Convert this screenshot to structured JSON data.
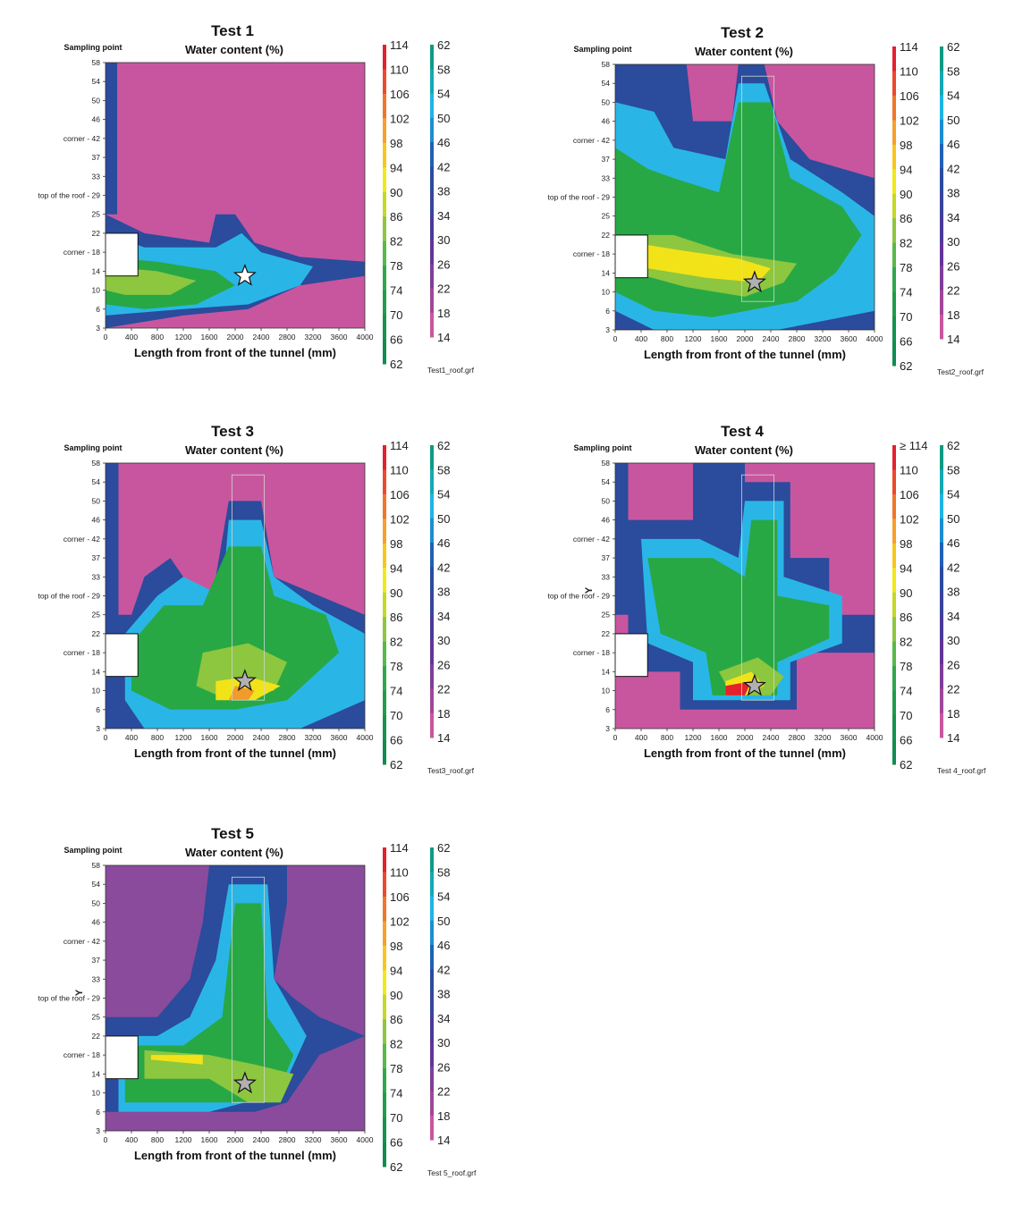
{
  "chart_data": [
    {
      "type": "heatmap",
      "title": "Test 1",
      "subtitle": "Water content (%)",
      "ylabel_header": "Sampling point",
      "xlabel": "Length from front of the tunnel (mm)",
      "x_ticks": [
        "0",
        "400",
        "800",
        "1200",
        "1600",
        "2000",
        "2400",
        "2800",
        "3200",
        "3600",
        "4000"
      ],
      "y_ticks": [
        "58",
        "54",
        "50",
        "46",
        "corner - 42",
        "37",
        "33",
        "top of the roof - 29",
        "25",
        "22",
        "corner - 18",
        "14",
        "10",
        "6",
        "3"
      ],
      "colorbar_left": [
        "114",
        "110",
        "106",
        "102",
        "98",
        "94",
        "90",
        "86",
        "82",
        "78",
        "74",
        "70",
        "66",
        "62"
      ],
      "colorbar_right": [
        "62",
        "58",
        "54",
        "50",
        "46",
        "42",
        "38",
        "34",
        "30",
        "26",
        "22",
        "18",
        "14"
      ],
      "file_label": "Test1_roof.grf",
      "background_level": "pink (14-18)",
      "marker": {
        "x_mm": 2150,
        "y": 13,
        "symbol": "star",
        "fill": "#ffffff"
      },
      "has_rect": false,
      "extra_y_marker": ""
    },
    {
      "type": "heatmap",
      "title": "Test 2",
      "subtitle": "Water content (%)",
      "ylabel_header": "Sampling point",
      "xlabel": "Length from front of the tunnel (mm)",
      "x_ticks": [
        "0",
        "400",
        "800",
        "1200",
        "1600",
        "2000",
        "2400",
        "2800",
        "3200",
        "3600",
        "4000"
      ],
      "y_ticks": [
        "58",
        "54",
        "50",
        "46",
        "corner - 42",
        "37",
        "33",
        "top of the roof - 29",
        "25",
        "22",
        "corner - 18",
        "14",
        "10",
        "6",
        "3"
      ],
      "colorbar_left": [
        "114",
        "110",
        "106",
        "102",
        "98",
        "94",
        "90",
        "86",
        "82",
        "78",
        "74",
        "70",
        "66",
        "62"
      ],
      "colorbar_right": [
        "62",
        "58",
        "54",
        "50",
        "46",
        "42",
        "38",
        "34",
        "30",
        "26",
        "22",
        "18",
        "14"
      ],
      "file_label": "Test2_roof.grf",
      "background_level": "pink (14-18)",
      "marker": {
        "x_mm": 2150,
        "y": 12,
        "symbol": "star",
        "fill": "#b0b0b0"
      },
      "has_rect": true,
      "extra_y_marker": ""
    },
    {
      "type": "heatmap",
      "title": "Test 3",
      "subtitle": "Water content (%)",
      "ylabel_header": "Sampling point",
      "xlabel": "Length from front of the tunnel (mm)",
      "x_ticks": [
        "0",
        "400",
        "800",
        "1200",
        "1600",
        "2000",
        "2400",
        "2800",
        "3200",
        "3600",
        "4000"
      ],
      "y_ticks": [
        "58",
        "54",
        "50",
        "46",
        "corner - 42",
        "37",
        "33",
        "top of the roof - 29",
        "25",
        "22",
        "corner - 18",
        "14",
        "10",
        "6",
        "3"
      ],
      "colorbar_left": [
        "114",
        "110",
        "106",
        "102",
        "98",
        "94",
        "90",
        "86",
        "82",
        "78",
        "74",
        "70",
        "66",
        "62"
      ],
      "colorbar_right": [
        "62",
        "58",
        "54",
        "50",
        "46",
        "42",
        "38",
        "34",
        "30",
        "26",
        "22",
        "18",
        "14"
      ],
      "file_label": "Test3_roof.grf",
      "background_level": "pink (14-18)",
      "marker": {
        "x_mm": 2150,
        "y": 12,
        "symbol": "star",
        "fill": "#b0b0b0"
      },
      "has_rect": true,
      "extra_y_marker": ""
    },
    {
      "type": "heatmap",
      "title": "Test 4",
      "subtitle": "Water content (%)",
      "ylabel_header": "Sampling point",
      "xlabel": "Length from front of the tunnel (mm)",
      "x_ticks": [
        "0",
        "400",
        "800",
        "1200",
        "1600",
        "2000",
        "2400",
        "2800",
        "3200",
        "3600",
        "4000"
      ],
      "y_ticks": [
        "58",
        "54",
        "50",
        "46",
        "corner - 42",
        "37",
        "33",
        "top of the roof - 29",
        "25",
        "22",
        "corner - 18",
        "14",
        "10",
        "6",
        "3"
      ],
      "colorbar_left": [
        "≥ 114",
        "110",
        "106",
        "102",
        "98",
        "94",
        "90",
        "86",
        "82",
        "78",
        "74",
        "70",
        "66",
        "62"
      ],
      "colorbar_right": [
        "62",
        "58",
        "54",
        "50",
        "46",
        "42",
        "38",
        "34",
        "30",
        "26",
        "22",
        "18",
        "14"
      ],
      "file_label": "Test 4_roof.grf",
      "background_level": "pink (14-18)",
      "marker": {
        "x_mm": 2150,
        "y": 11,
        "symbol": "star",
        "fill": "#b0b0b0"
      },
      "has_rect": true,
      "extra_y_marker": "Y"
    },
    {
      "type": "heatmap",
      "title": "Test 5",
      "subtitle": "Water content (%)",
      "ylabel_header": "Sampling point",
      "xlabel": "Length from front of the tunnel (mm)",
      "x_ticks": [
        "0",
        "400",
        "800",
        "1200",
        "1600",
        "2000",
        "2400",
        "2800",
        "3200",
        "3600",
        "4000"
      ],
      "y_ticks": [
        "58",
        "54",
        "50",
        "46",
        "corner - 42",
        "37",
        "33",
        "top of the roof - 29",
        "25",
        "22",
        "corner - 18",
        "14",
        "10",
        "6",
        "3"
      ],
      "colorbar_left": [
        "114",
        "110",
        "106",
        "102",
        "98",
        "94",
        "90",
        "86",
        "82",
        "78",
        "74",
        "70",
        "66",
        "62"
      ],
      "colorbar_right": [
        "62",
        "58",
        "54",
        "50",
        "46",
        "42",
        "38",
        "34",
        "30",
        "26",
        "22",
        "18",
        "14"
      ],
      "file_label": "Test 5_roof.grf",
      "background_level": "purple (18-22)",
      "marker": {
        "x_mm": 2150,
        "y": 12,
        "symbol": "star",
        "fill": "#b0b0b0"
      },
      "has_rect": true,
      "extra_y_marker": "Y"
    }
  ],
  "colors": {
    "left_scale": [
      "#e4212c",
      "#ec4a2a",
      "#f2752a",
      "#f6a12a",
      "#f8c61c",
      "#f1e917",
      "#c5d824",
      "#8fc63f",
      "#57b947",
      "#2ea84a",
      "#1f9c4c",
      "#14934e",
      "#0e8d4f"
    ],
    "right_scale": [
      "#0f9a83",
      "#14a8b4",
      "#1eb5e2",
      "#1b8ed0",
      "#2060b4",
      "#2b4b9c",
      "#39449a",
      "#4b3b97",
      "#633597",
      "#7f3e98",
      "#a0479a",
      "#c8569f"
    ],
    "pink": "#c8569f",
    "purple": "#8a4b9c",
    "deep_blue": "#2b4b9c",
    "light_blue": "#29b6e6",
    "cyan": "#1ba5c8",
    "green": "#27a845",
    "lime": "#8dc63f",
    "yellow": "#f2e318",
    "orange": "#f29a2a",
    "red": "#e4212c"
  }
}
